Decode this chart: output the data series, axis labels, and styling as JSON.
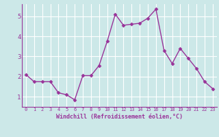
{
  "x": [
    0,
    1,
    2,
    3,
    4,
    5,
    6,
    7,
    8,
    9,
    10,
    11,
    12,
    13,
    14,
    15,
    16,
    17,
    18,
    19,
    20,
    21,
    22,
    23
  ],
  "y": [
    2.1,
    1.75,
    1.75,
    1.75,
    1.2,
    1.1,
    0.85,
    2.05,
    2.05,
    2.55,
    3.75,
    5.1,
    4.55,
    4.6,
    4.65,
    4.9,
    5.35,
    3.3,
    2.65,
    3.4,
    2.9,
    2.4,
    1.75,
    1.4
  ],
  "line_color": "#993399",
  "marker": "D",
  "markersize": 2.5,
  "linewidth": 1.0,
  "bg_color": "#cce8e8",
  "grid_color": "#ffffff",
  "xlabel": "Windchill (Refroidissement éolien,°C)",
  "xlabel_color": "#993399",
  "tick_color": "#993399",
  "ylim": [
    0.5,
    5.6
  ],
  "xlim": [
    -0.5,
    23.5
  ],
  "yticks": [
    1,
    2,
    3,
    4,
    5
  ],
  "xticks": [
    0,
    1,
    2,
    3,
    4,
    5,
    6,
    7,
    8,
    9,
    10,
    11,
    12,
    13,
    14,
    15,
    16,
    17,
    18,
    19,
    20,
    21,
    22,
    23
  ]
}
